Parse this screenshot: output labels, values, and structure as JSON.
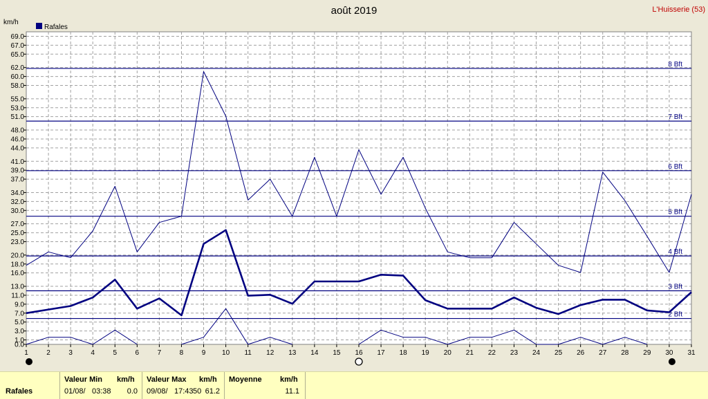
{
  "title": "août 2019",
  "station": "L'Huisserie (53)",
  "colors": {
    "background": "#ece9d8",
    "plot": "#ffffff",
    "series": "#000080",
    "grid": "#a0a0a0",
    "footer": "#ffffc0"
  },
  "chart_data": {
    "type": "line",
    "ylabel": "km/h",
    "legend": [
      "Rafales"
    ],
    "legend_position": "top-left",
    "grid": true,
    "x": [
      1,
      2,
      3,
      4,
      5,
      6,
      7,
      8,
      9,
      10,
      11,
      12,
      13,
      14,
      15,
      16,
      17,
      18,
      19,
      20,
      21,
      22,
      23,
      24,
      25,
      26,
      27,
      28,
      29,
      30,
      31
    ],
    "xlim": [
      1,
      31
    ],
    "ylim": [
      0,
      70
    ],
    "y_ticks": [
      "0.0",
      "1.0",
      "3.0",
      "5.0",
      "7.0",
      "9.0",
      "11.0",
      "13.0",
      "16.0",
      "18.0",
      "20.0",
      "23.0",
      "25.0",
      "27.0",
      "30.0",
      "32.0",
      "34.0",
      "37.0",
      "39.0",
      "41.0",
      "44.0",
      "46.0",
      "48.0",
      "51.0",
      "53.0",
      "55.0",
      "58.0",
      "60.0",
      "62.0",
      "65.0",
      "67.0",
      "69.0"
    ],
    "beaufort": [
      {
        "label": "2 Bft",
        "value": 5.8
      },
      {
        "label": "3 Bft",
        "value": 12
      },
      {
        "label": "4 Bft",
        "value": 19.8
      },
      {
        "label": "5 Bft",
        "value": 28.7
      },
      {
        "label": "6 Bft",
        "value": 38.9
      },
      {
        "label": "7 Bft",
        "value": 50
      },
      {
        "label": "8 Bft",
        "value": 61.8
      }
    ],
    "series": [
      {
        "values": [
          17.7,
          20.7,
          19.4,
          25.4,
          35.4,
          20.7,
          27.3,
          28.7,
          61.1,
          51.1,
          32.3,
          37.0,
          28.7,
          41.9,
          28.7,
          43.6,
          33.6,
          41.9,
          30.5,
          20.7,
          19.4,
          19.4,
          27.3,
          22.5,
          17.7,
          16.1,
          38.6,
          32.2,
          24.2,
          16.1,
          33.6
        ]
      },
      {
        "values": [
          7.0,
          7.8,
          8.6,
          10.5,
          14.5,
          8.0,
          10.3,
          6.5,
          22.5,
          25.6,
          10.9,
          11.1,
          9.1,
          14.1,
          14.1,
          14.1,
          15.6,
          15.4,
          9.9,
          8.0,
          8.0,
          8.0,
          10.5,
          8.2,
          6.8,
          8.8,
          10.0,
          10.0,
          7.6,
          7.2,
          11.7
        ]
      },
      {
        "values": [
          0.0,
          1.6,
          1.6,
          0.0,
          3.2,
          0.0,
          null,
          0.0,
          1.6,
          8.0,
          0.0,
          1.6,
          0.0,
          null,
          null,
          0.0,
          3.2,
          1.6,
          1.6,
          0.0,
          1.6,
          1.6,
          3.2,
          0.0,
          0.0,
          1.6,
          0.0,
          1.6,
          0.0,
          null,
          null
        ]
      }
    ],
    "moon_phases": [
      {
        "day": 1,
        "phase": "new"
      },
      {
        "day": 16,
        "phase": "full"
      },
      {
        "day": 30,
        "phase": "new"
      }
    ]
  },
  "footer": {
    "row_label": "Rafales",
    "min_header": "Valeur Min",
    "min_unit": "km/h",
    "min_date": "01/08/",
    "min_time": "03:38",
    "min_value": "0.0",
    "max_header": "Valeur Max",
    "max_unit": "km/h",
    "max_date": "09/08/",
    "max_time": "17:43",
    "max_extra": "50",
    "max_value": "61.2",
    "avg_header": "Moyenne",
    "avg_unit": "km/h",
    "avg_value": "11.1"
  }
}
